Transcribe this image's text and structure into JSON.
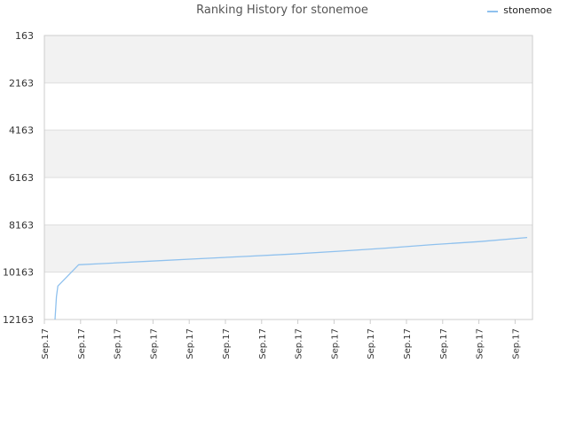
{
  "chart_data": {
    "type": "line",
    "title": "Ranking History for stonemoe",
    "xlabel": "",
    "ylabel": "",
    "legend": {
      "placement": "top-right",
      "entries": [
        "stonemoe"
      ]
    },
    "y_axis": {
      "reversed": true,
      "ylim": [
        163,
        12163
      ],
      "ticks": [
        "163",
        "2163",
        "4163",
        "6163",
        "8163",
        "10163",
        "12163"
      ],
      "tick_values": [
        163,
        2163,
        4163,
        6163,
        8163,
        10163,
        12163
      ]
    },
    "x_axis": {
      "tick_labels": [
        "Sep.17",
        "Sep.17",
        "Sep.17",
        "Sep.17",
        "Sep.17",
        "Sep.17",
        "Sep.17",
        "Sep.17",
        "Sep.17",
        "Sep.17",
        "Sep.17",
        "Sep.17",
        "Sep.17",
        "Sep.17"
      ]
    },
    "grid": true,
    "colors": {
      "series": "#8fc1ee",
      "band": "#f2f2f2",
      "grid": "#dddddd",
      "axis": "#cccccc"
    },
    "series": [
      {
        "name": "stonemoe",
        "x_fraction": [
          0.0,
          0.003,
          0.006,
          0.05,
          0.1,
          0.2,
          0.3,
          0.4,
          0.5,
          0.6,
          0.7,
          0.8,
          0.9,
          1.0
        ],
        "values": [
          12163,
          11200,
          10750,
          9850,
          9800,
          9700,
          9600,
          9500,
          9400,
          9280,
          9150,
          9000,
          8870,
          8700
        ]
      }
    ]
  }
}
